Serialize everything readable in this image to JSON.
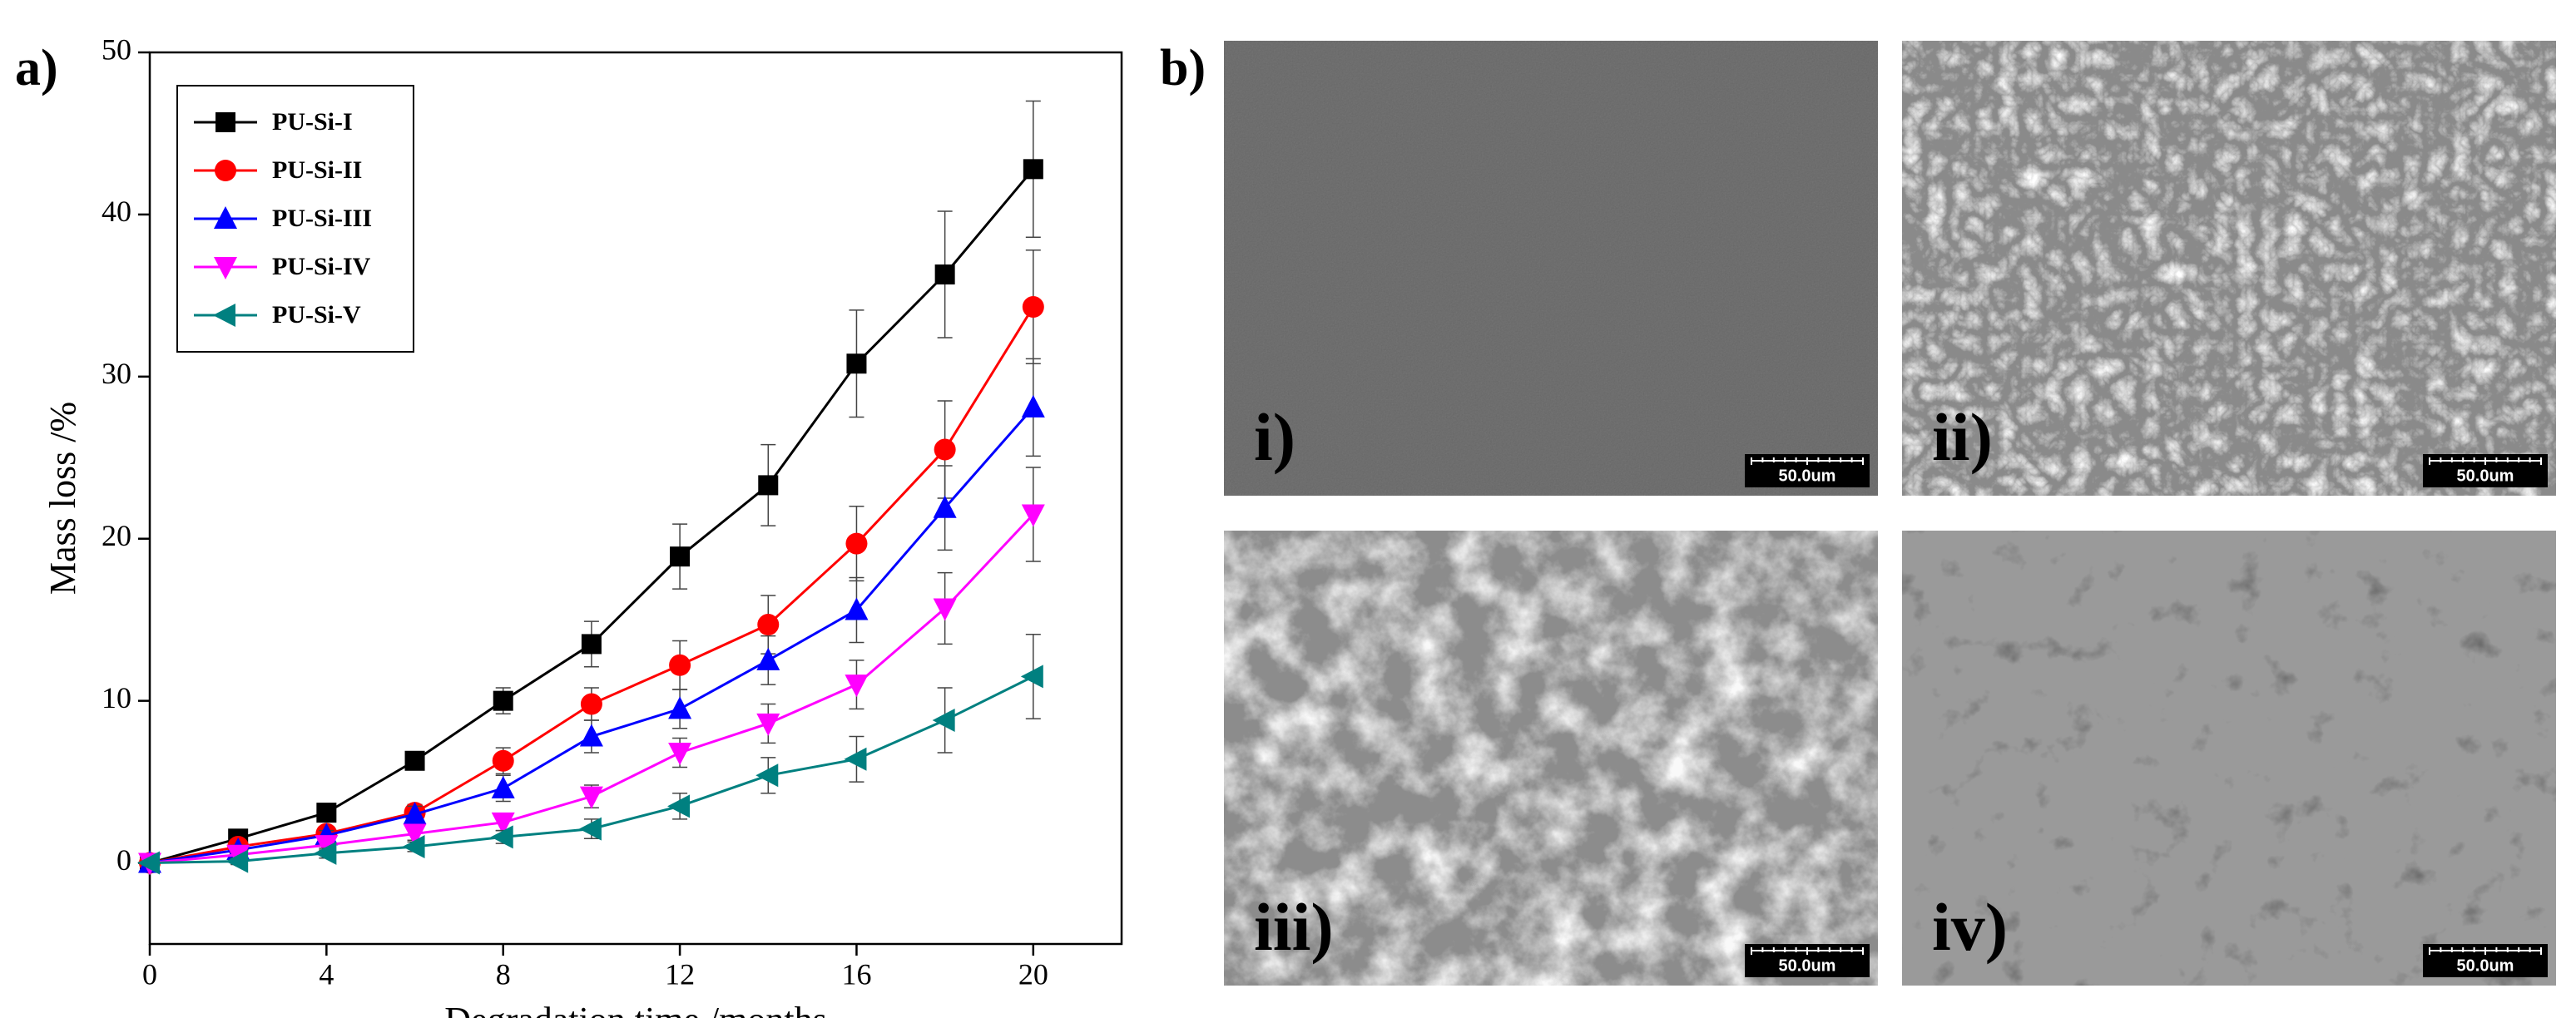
{
  "chart_data": {
    "type": "line",
    "xlabel": "Degradation time /months",
    "ylabel": "Mass loss /%",
    "x": [
      0,
      2,
      4,
      6,
      8,
      10,
      12,
      14,
      16,
      18,
      20
    ],
    "xlim": [
      0,
      22
    ],
    "xticks": [
      0,
      4,
      8,
      12,
      16,
      20
    ],
    "ylim": [
      -5,
      50
    ],
    "yticks": [
      0,
      10,
      20,
      30,
      40,
      50
    ],
    "legend": "upper left",
    "series": [
      {
        "name": "PU-Si-I",
        "color": "#000000",
        "marker": "square",
        "values": [
          0,
          1.5,
          3.1,
          6.3,
          10,
          13.5,
          18.9,
          23.3,
          30.8,
          36.3,
          42.8
        ],
        "errors": [
          0,
          0.3,
          0.4,
          0.5,
          0.8,
          1.4,
          2,
          2.5,
          3.3,
          3.9,
          4.2
        ]
      },
      {
        "name": "PU-Si-II",
        "color": "#ff0000",
        "marker": "circle",
        "values": [
          0,
          1.0,
          1.8,
          3.1,
          6.3,
          9.8,
          12.2,
          14.7,
          19.7,
          25.5,
          34.3
        ],
        "errors": [
          0,
          0.3,
          0.4,
          0.5,
          0.8,
          1,
          1.5,
          1.8,
          2.3,
          3,
          3.5
        ]
      },
      {
        "name": "PU-Si-III",
        "color": "#0000ff",
        "marker": "triangle-up",
        "values": [
          0,
          0.8,
          1.7,
          3.0,
          4.6,
          7.8,
          9.5,
          12.5,
          15.6,
          21.9,
          28.1
        ],
        "errors": [
          0,
          0.3,
          0.3,
          0.5,
          0.8,
          1,
          1.2,
          1.5,
          2,
          2.6,
          3
        ]
      },
      {
        "name": "PU-Si-IV",
        "color": "#ff00ff",
        "marker": "triangle-down",
        "values": [
          0,
          0.5,
          1.1,
          1.8,
          2.5,
          4.1,
          6.8,
          8.6,
          11,
          15.7,
          21.5
        ],
        "errors": [
          0,
          0.2,
          0.3,
          0.4,
          0.5,
          0.7,
          0.9,
          1.2,
          1.5,
          2.2,
          2.9
        ]
      },
      {
        "name": "PU-Si-V",
        "color": "#008080",
        "marker": "triangle-left",
        "values": [
          0,
          0.1,
          0.6,
          1.0,
          1.6,
          2.1,
          3.5,
          5.4,
          6.4,
          8.8,
          11.5
        ],
        "errors": [
          0,
          0.2,
          0.3,
          0.3,
          0.4,
          0.6,
          0.8,
          1.1,
          1.4,
          2,
          2.6
        ]
      }
    ]
  },
  "panels": {
    "a": "a)",
    "b": "b)"
  },
  "images": [
    {
      "label": "i)",
      "scale": "50.0um"
    },
    {
      "label": "ii)",
      "scale": "50.0um"
    },
    {
      "label": "iii)",
      "scale": "50.0um"
    },
    {
      "label": "iv)",
      "scale": "50.0um"
    }
  ]
}
